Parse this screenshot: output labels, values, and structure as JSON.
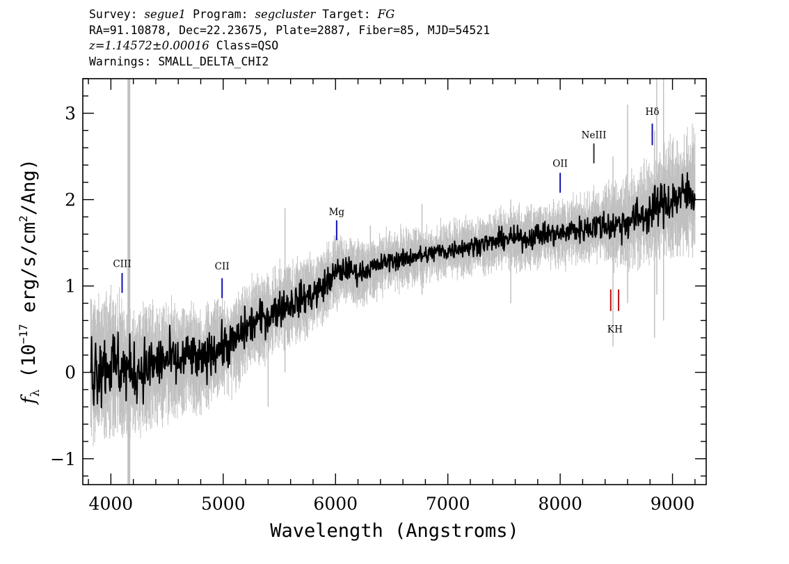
{
  "header": {
    "line1": {
      "survey_label": "Survey:",
      "survey": "segue1",
      "program_label": "Program:",
      "program": "segcluster",
      "target_label": "Target:",
      "target": "FG"
    },
    "line2": "RA=91.10878, Dec=22.23675, Plate=2887, Fiber=85, MJD=54521",
    "line3": {
      "redshift": "z=1.14572±0.00016",
      "class": "Class=QSO"
    },
    "line4": "Warnings: SMALL_DELTA_CHI2"
  },
  "chart_data": {
    "type": "line",
    "title": "",
    "xlabel": "Wavelength (Angstroms)",
    "ylabel": {
      "symbol": "f",
      "subscript": "λ",
      "prefix": " (10",
      "exponent": "−17",
      "middle": " erg/s/cm",
      "exponent2": "2",
      "suffix": "/Ang)"
    },
    "xlim": [
      3750,
      9300
    ],
    "ylim": [
      -1.3,
      3.4
    ],
    "x_ticks": [
      4000,
      5000,
      6000,
      7000,
      8000,
      9000
    ],
    "x_tick_labels": [
      "4000",
      "5000",
      "6000",
      "7000",
      "8000",
      "9000"
    ],
    "y_ticks": [
      -1,
      0,
      1,
      2,
      3
    ],
    "y_tick_labels": [
      "−1",
      "0",
      "1",
      "2",
      "3"
    ],
    "grid": false,
    "legend": "none",
    "series": [
      {
        "role": "flux",
        "color": "#000000",
        "x": [
          3820,
          3900,
          4000,
          4100,
          4200,
          4300,
          4400,
          4500,
          4600,
          4700,
          4800,
          4900,
          5000,
          5100,
          5200,
          5300,
          5400,
          5500,
          5600,
          5700,
          5800,
          5900,
          6000,
          6100,
          6200,
          6300,
          6400,
          6500,
          6600,
          6700,
          6800,
          6900,
          7000,
          7100,
          7200,
          7300,
          7400,
          7500,
          7600,
          7700,
          7800,
          7900,
          8000,
          8100,
          8200,
          8300,
          8400,
          8500,
          8600,
          8700,
          8800,
          8900,
          9000,
          9100,
          9200
        ],
        "y": [
          0.05,
          0.08,
          0.1,
          0.05,
          0.0,
          0.05,
          0.1,
          0.15,
          0.1,
          0.2,
          0.1,
          0.25,
          0.3,
          0.35,
          0.5,
          0.6,
          0.65,
          0.75,
          0.8,
          0.85,
          0.9,
          1.0,
          1.15,
          1.2,
          1.15,
          1.2,
          1.25,
          1.3,
          1.3,
          1.35,
          1.35,
          1.4,
          1.4,
          1.45,
          1.45,
          1.5,
          1.5,
          1.55,
          1.55,
          1.55,
          1.6,
          1.6,
          1.6,
          1.65,
          1.65,
          1.7,
          1.7,
          1.7,
          1.75,
          1.8,
          1.85,
          1.95,
          2.0,
          2.05,
          2.1
        ],
        "noise": [
          0.35,
          0.3,
          0.3,
          0.28,
          0.25,
          0.25,
          0.22,
          0.22,
          0.2,
          0.2,
          0.18,
          0.18,
          0.18,
          0.17,
          0.17,
          0.16,
          0.15,
          0.15,
          0.14,
          0.14,
          0.13,
          0.13,
          0.12,
          0.1,
          0.09,
          0.08,
          0.08,
          0.08,
          0.08,
          0.08,
          0.08,
          0.08,
          0.08,
          0.08,
          0.08,
          0.08,
          0.08,
          0.09,
          0.09,
          0.09,
          0.1,
          0.1,
          0.1,
          0.1,
          0.11,
          0.12,
          0.13,
          0.14,
          0.15,
          0.16,
          0.17,
          0.18,
          0.19,
          0.2,
          0.2
        ]
      },
      {
        "role": "error",
        "color": "#c0c0c0",
        "x": [
          3820,
          3900,
          4000,
          4100,
          4200,
          4300,
          4400,
          4500,
          4600,
          4700,
          4800,
          4900,
          5000,
          5100,
          5200,
          5300,
          5400,
          5500,
          5600,
          5700,
          5800,
          5900,
          6000,
          6100,
          6200,
          6300,
          6400,
          6500,
          6600,
          6700,
          6800,
          6900,
          7000,
          7100,
          7200,
          7300,
          7400,
          7500,
          7600,
          7700,
          7800,
          7900,
          8000,
          8100,
          8200,
          8300,
          8400,
          8500,
          8600,
          8700,
          8800,
          8900,
          9000,
          9100,
          9200
        ],
        "halfwidth": [
          0.65,
          0.6,
          0.58,
          0.55,
          0.52,
          0.5,
          0.48,
          0.46,
          0.45,
          0.44,
          0.42,
          0.4,
          0.38,
          0.37,
          0.36,
          0.35,
          0.34,
          0.33,
          0.32,
          0.31,
          0.3,
          0.29,
          0.28,
          0.26,
          0.25,
          0.24,
          0.23,
          0.22,
          0.22,
          0.21,
          0.21,
          0.21,
          0.21,
          0.21,
          0.22,
          0.22,
          0.22,
          0.23,
          0.23,
          0.23,
          0.24,
          0.24,
          0.25,
          0.26,
          0.28,
          0.3,
          0.32,
          0.34,
          0.36,
          0.38,
          0.42,
          0.45,
          0.48,
          0.5,
          0.52
        ]
      }
    ],
    "spikes": [
      {
        "x": 4160,
        "y1": -1.3,
        "y2": 3.4,
        "color": "#c0c0c0"
      },
      {
        "x": 5400,
        "y1": -0.4,
        "y2": 1.1,
        "color": "#c0c0c0"
      },
      {
        "x": 5550,
        "y1": 0.0,
        "y2": 1.9,
        "color": "#c0c0c0"
      },
      {
        "x": 6310,
        "y1": 0.9,
        "y2": 1.7,
        "color": "#c0c0c0"
      },
      {
        "x": 6770,
        "y1": 0.9,
        "y2": 1.95,
        "color": "#c0c0c0"
      },
      {
        "x": 7560,
        "y1": 0.8,
        "y2": 2.0,
        "color": "#c0c0c0"
      },
      {
        "x": 8470,
        "y1": 0.3,
        "y2": 2.5,
        "color": "#c0c0c0"
      },
      {
        "x": 8600,
        "y1": 0.8,
        "y2": 3.1,
        "color": "#c0c0c0"
      },
      {
        "x": 8840,
        "y1": 0.4,
        "y2": 2.8,
        "color": "#c0c0c0"
      },
      {
        "x": 8860,
        "y1": 0.9,
        "y2": 3.4,
        "color": "#c0c0c0"
      },
      {
        "x": 8920,
        "y1": 0.6,
        "y2": 3.4,
        "color": "#c0c0c0"
      }
    ],
    "annotations": [
      {
        "label": "CIII",
        "x": 4100,
        "color": "#1010b0",
        "y_label": 1.22,
        "y_tick_top": 1.15,
        "y_tick_bottom": 0.92
      },
      {
        "label": "CII",
        "x": 4990,
        "color": "#1010b0",
        "y_label": 1.19,
        "y_tick_top": 1.09,
        "y_tick_bottom": 0.86
      },
      {
        "label": "Mg",
        "x": 6010,
        "color": "#1010b0",
        "y_label": 1.82,
        "y_tick_top": 1.76,
        "y_tick_bottom": 1.53
      },
      {
        "label": "OII",
        "x": 8000,
        "color": "#1010b0",
        "y_label": 2.38,
        "y_tick_top": 2.31,
        "y_tick_bottom": 2.08
      },
      {
        "label": "NeIII",
        "x": 8300,
        "color": "#333333",
        "y_label": 2.71,
        "y_tick_top": 2.65,
        "y_tick_bottom": 2.42
      },
      {
        "label": "Hδ",
        "x": 8820,
        "color": "#1010b0",
        "y_label": 2.98,
        "y_tick_top": 2.88,
        "y_tick_bottom": 2.63
      },
      {
        "label": "K",
        "x": 8450,
        "color": "#c01010",
        "y_label": 0.56,
        "y_tick_top": 0.96,
        "y_tick_bottom": 0.71,
        "label_below": true
      },
      {
        "label": "H",
        "x": 8520,
        "color": "#c01010",
        "y_label": 0.56,
        "y_tick_top": 0.96,
        "y_tick_bottom": 0.71,
        "label_below": true
      }
    ]
  }
}
